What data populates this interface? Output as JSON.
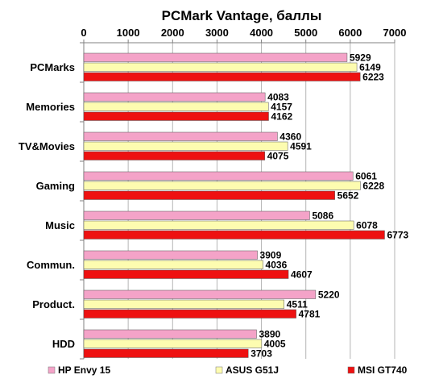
{
  "chart_data": {
    "type": "bar",
    "orientation": "horizontal",
    "title": "PCMark Vantage, баллы",
    "xlabel": "",
    "ylabel": "",
    "xlim": [
      0,
      7000
    ],
    "ticks": [
      0,
      1000,
      2000,
      3000,
      4000,
      5000,
      6000,
      7000
    ],
    "x_axis_position": "top",
    "grid": true,
    "legend_position": "bottom",
    "categories": [
      "PCMarks",
      "Memories",
      "TV&Movies",
      "Gaming",
      "Music",
      "Commun.",
      "Product.",
      "HDD"
    ],
    "series": [
      {
        "name": "HP Envy 15",
        "color": "#f4a3c8",
        "values": [
          5929,
          4083,
          4360,
          6061,
          5086,
          3909,
          5220,
          3890
        ]
      },
      {
        "name": "ASUS G51J",
        "color": "#fdfcb0",
        "values": [
          6149,
          4157,
          4591,
          6228,
          6078,
          4036,
          4511,
          4005
        ]
      },
      {
        "name": "MSI GT740",
        "color": "#ee1111",
        "values": [
          6223,
          4162,
          4075,
          5652,
          6773,
          4607,
          4781,
          3703
        ]
      }
    ]
  }
}
